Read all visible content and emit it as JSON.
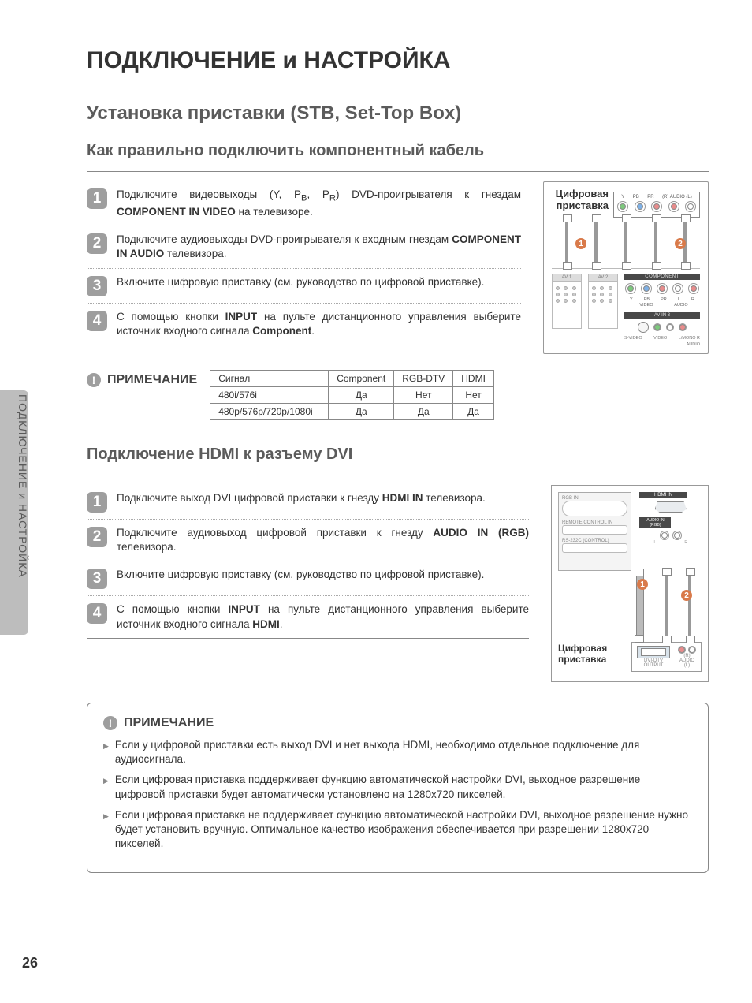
{
  "side_tab_text": "ПОДКЛЮЧЕНИЕ и НАСТРОЙКА",
  "page_number": "26",
  "title": "ПОДКЛЮЧЕНИЕ и НАСТРОЙКА",
  "section1": {
    "heading": "Установка приставки (STB, Set-Top Box)",
    "subheading": "Как правильно подключить компонентный кабель",
    "diagram_label": "Цифровая приставка",
    "port_labels": {
      "y": "Y",
      "pb": "PB",
      "pr": "PR",
      "ar": "(R) AUDIO (L)"
    },
    "tv": {
      "av1": "AV 1",
      "av2": "AV 2",
      "component": "COMPONENT",
      "video": "VIDEO",
      "y": "Y",
      "pb": "PB",
      "pr": "PR",
      "l": "L",
      "r": "R",
      "laudio": "AUDIO",
      "avin3": "AV IN 3",
      "svideo": "S-VIDEO",
      "vid": "VIDEO",
      "lr": "L/MONO  R",
      "aud": "AUDIO"
    },
    "steps": [
      "Подключите видеовыходы (Y, P<sub>B</sub>, P<sub>R</sub>) DVD-проигрывателя к гнездам <strong>COMPONENT IN VIDEO</strong> на телевизоре.",
      "Подключите аудиовыходы DVD-проигрывателя к входным гнездам <strong>COMPONENT IN AUDIO</strong> телевизора.",
      "Включите цифровую приставку (см. руководство по цифровой приставке).",
      "С помощью кнопки <strong>INPUT</strong> на пульте дистанционного управления выберите источник входного сигнала <strong>Component</strong>."
    ],
    "note_label": "ПРИМЕЧАНИЕ",
    "table": {
      "headers": [
        "Сигнал",
        "Component",
        "RGB-DTV",
        "HDMI"
      ],
      "rows": [
        [
          "480i/576i",
          "Да",
          "Нет",
          "Нет"
        ],
        [
          "480p/576p/720p/1080i",
          "Да",
          "Да",
          "Да"
        ]
      ]
    }
  },
  "section2": {
    "heading": "Подключение HDMI к разъему DVI",
    "diagram": {
      "hdmi_in": "HDMI IN",
      "audio_in": "AUDIO IN (RGB)",
      "rgb_in": "RGB IN",
      "remote": "REMOTE CONTROL IN",
      "rs232": "RS-232C (CONTROL)",
      "l": "L",
      "r": "R",
      "dvi_out": "DVI-DTV OUTPUT",
      "audio_out": "(R) AUDIO (L)",
      "stb": "Цифровая приставка"
    },
    "steps": [
      "Подключите выход DVI цифровой приставки к гнезду <strong>HDMI IN</strong> телевизора.",
      "Подключите аудиовыход цифровой приставки к гнезду <strong>AUDIO IN (RGB)</strong> телевизора.",
      "Включите цифровую приставку (см. руководство по цифровой приставке).",
      "С помощью кнопки <strong>INPUT</strong> на пульте дистанционного управления выберите источник входного сигнала <strong>HDMI</strong>."
    ],
    "note_label": "ПРИМЕЧАНИЕ",
    "notes": [
      "Если у цифровой приставки есть выход DVI и нет выхода HDMI, необходимо отдельное подключение для аудиосигнала.",
      "Если цифровая приставка поддерживает функцию автоматической настройки DVI, выходное разрешение цифровой приставки будет автоматически установлено на 1280x720 пикселей.",
      "Если цифровая приставка не поддерживает функцию автоматической настройки DVI, выходное разрешение нужно будет установить вручную. Оптимальное качество изображения обеспечивается при разрешении 1280x720 пикселей."
    ]
  }
}
